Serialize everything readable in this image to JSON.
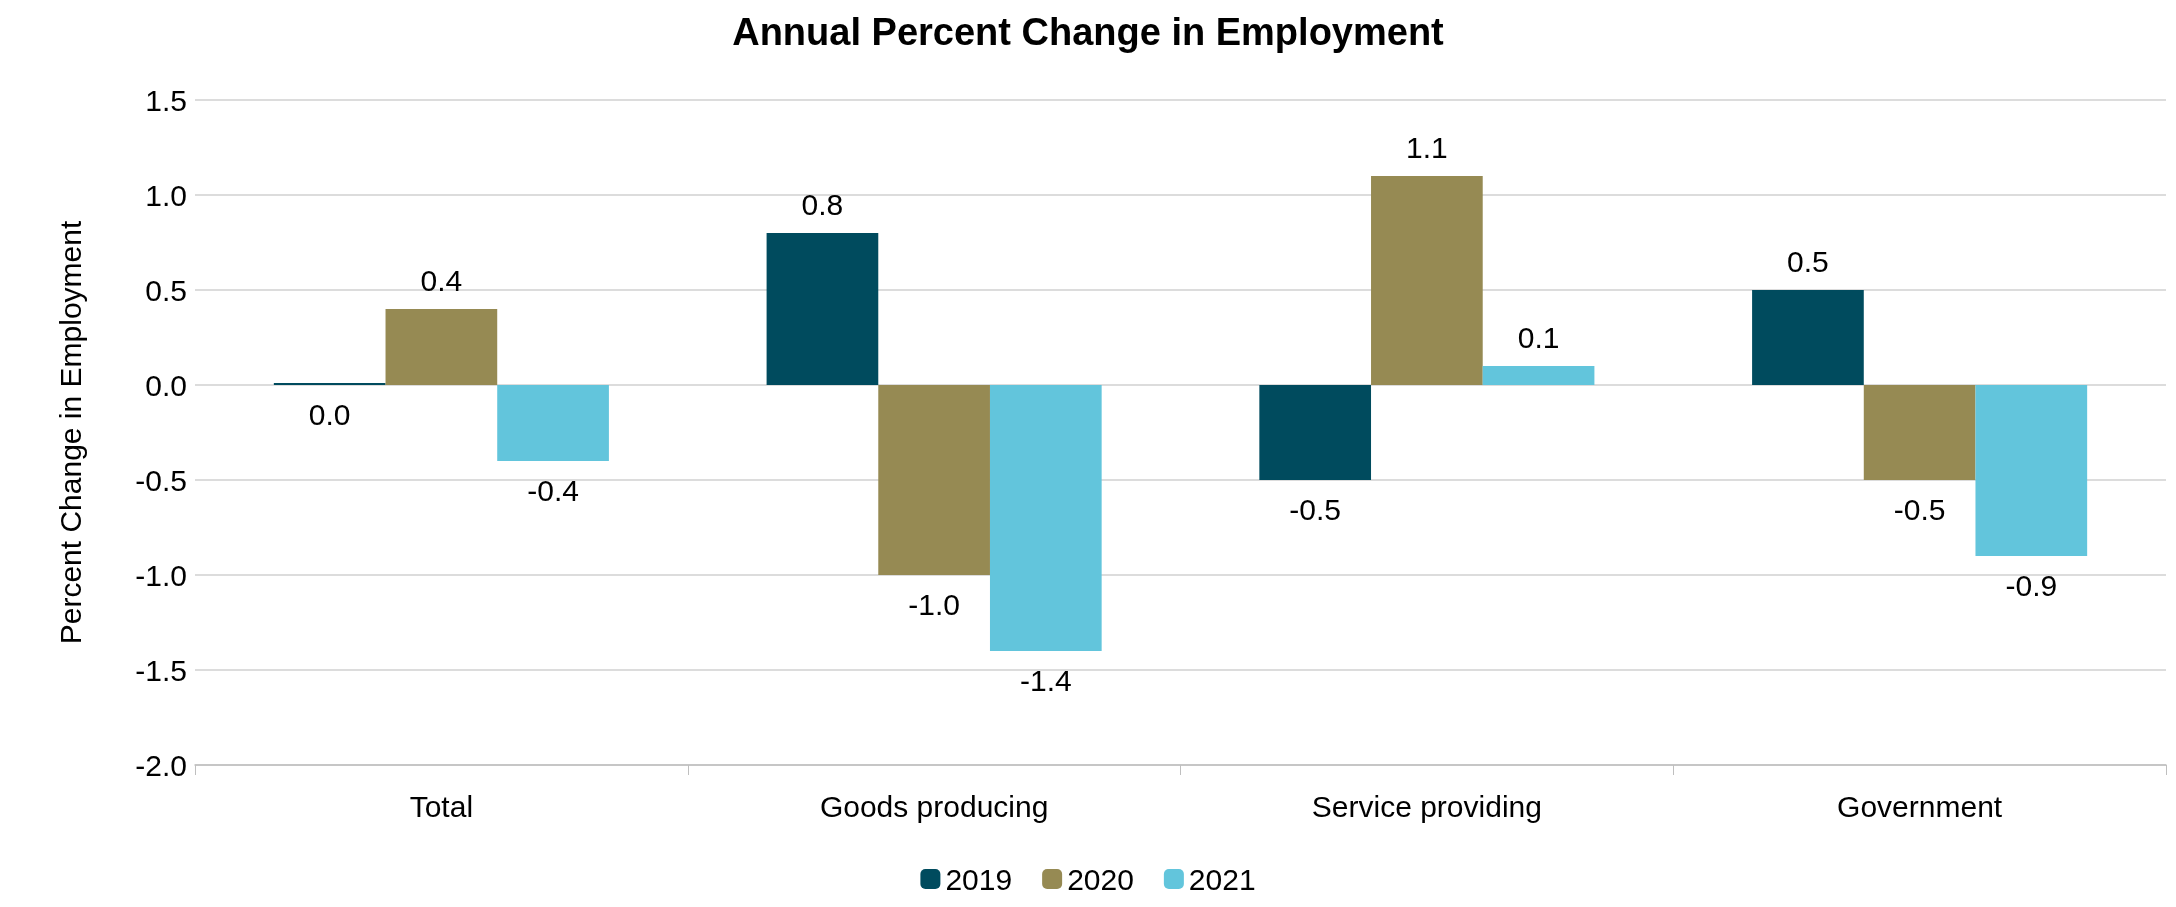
{
  "chart_data": {
    "type": "bar",
    "title": "Annual Percent Change in Employment",
    "ylabel": "Percent Change in Employment",
    "categories": [
      "Total",
      "Goods producing",
      "Service providing",
      "Government"
    ],
    "series": [
      {
        "name": "2019",
        "color": "#004b5e",
        "values": [
          0.0,
          0.8,
          -0.5,
          0.5
        ],
        "value_labels": [
          "0.0",
          "0.8",
          "-0.5",
          "0.5"
        ]
      },
      {
        "name": "2020",
        "color": "#968a53",
        "values": [
          0.4,
          -1.0,
          1.1,
          -0.5
        ],
        "value_labels": [
          "0.4",
          "-1.0",
          "1.1",
          "-0.5"
        ]
      },
      {
        "name": "2021",
        "color": "#62c5dc",
        "values": [
          -0.4,
          -1.4,
          0.1,
          -0.9
        ],
        "value_labels": [
          "-0.4",
          "-1.4",
          "0.1",
          "-0.9"
        ]
      }
    ],
    "ylim": [
      -2.0,
      1.5
    ],
    "yticks": [
      {
        "value": -2.0,
        "label": "-2.0"
      },
      {
        "value": -1.5,
        "label": "-1.5"
      },
      {
        "value": -1.0,
        "label": "-1.0"
      },
      {
        "value": -0.5,
        "label": "-0.5"
      },
      {
        "value": 0.0,
        "label": "0.0"
      },
      {
        "value": 0.5,
        "label": "0.5"
      },
      {
        "value": 1.0,
        "label": "1.0"
      },
      {
        "value": 1.5,
        "label": "1.5"
      }
    ],
    "grid": "y",
    "legend": "bottom"
  }
}
